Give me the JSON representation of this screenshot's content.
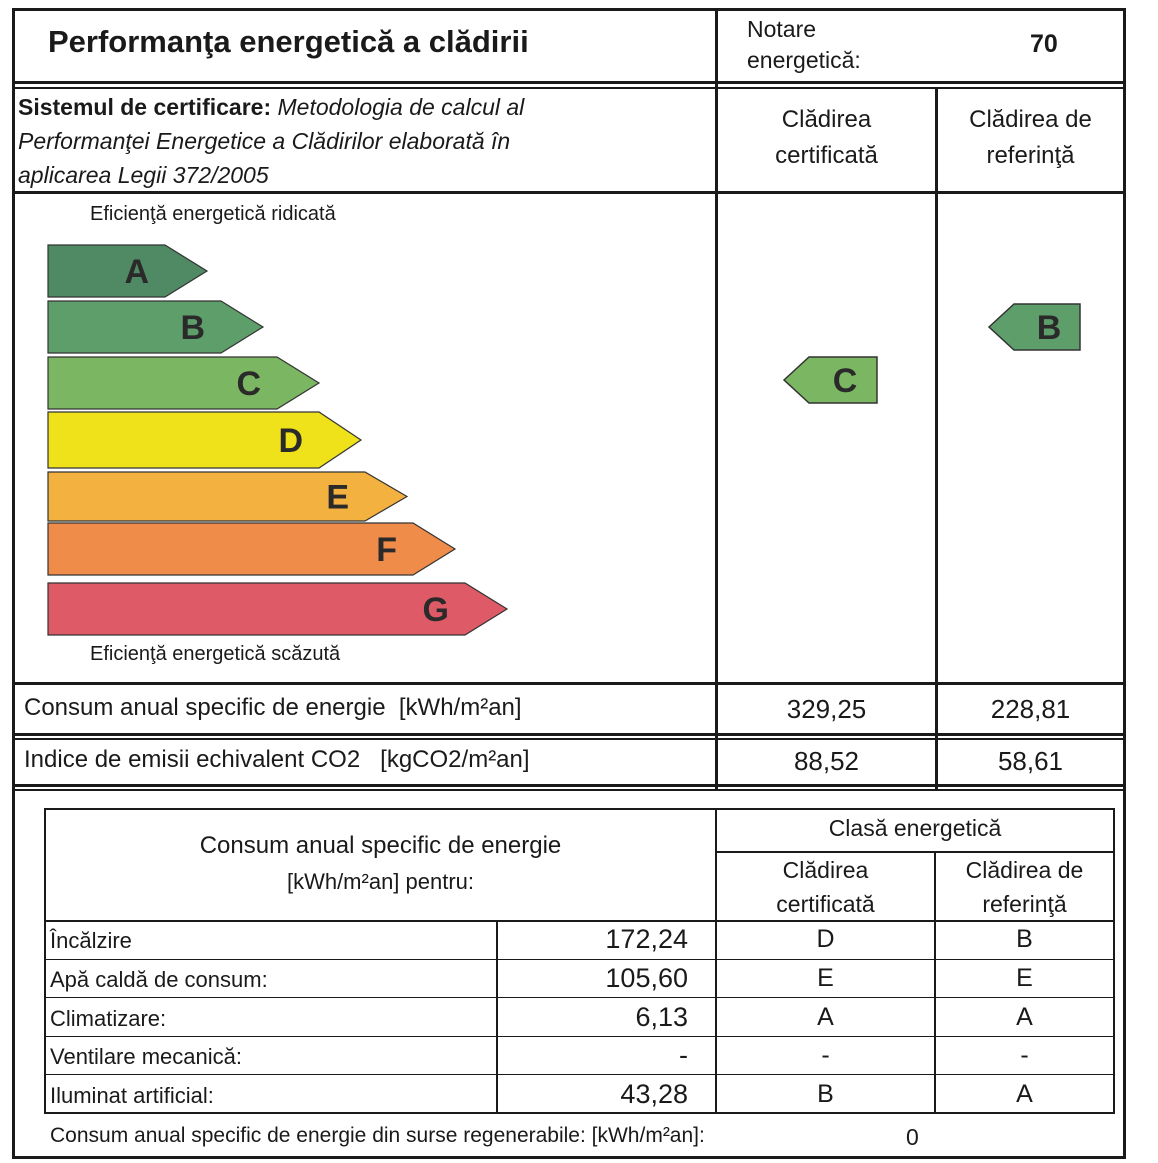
{
  "header": {
    "title": "Performanţa energetică a clădirii",
    "rating_label_line1": "Notare",
    "rating_label_line2": "energetică:",
    "rating_value": "70"
  },
  "certification": {
    "label": "Sistemul de certificare:",
    "line1": "Metodologia de calcul al",
    "line2": "Performanţei Energetice a Clădirilor elaborată în",
    "line3": "aplicarea Legii 372/2005",
    "col_certified_line1": "Clădirea",
    "col_certified_line2": "certificată",
    "col_reference_line1": "Clădirea de",
    "col_reference_line2": "referinţă"
  },
  "scale": {
    "top_label": "Eficienţă energetică ridicată",
    "bottom_label": "Eficienţă energetică scăzută",
    "classes": [
      {
        "letter": "A",
        "color": "#4f8a64"
      },
      {
        "letter": "B",
        "color": "#5e9e6a"
      },
      {
        "letter": "C",
        "color": "#7bb662"
      },
      {
        "letter": "D",
        "color": "#efe21a"
      },
      {
        "letter": "E",
        "color": "#f3b13f"
      },
      {
        "letter": "F",
        "color": "#f08c4a"
      },
      {
        "letter": "G",
        "color": "#de5a67"
      }
    ],
    "certified_class": "C",
    "certified_color": "#7bb662",
    "reference_class": "B",
    "reference_color": "#5e9e6a"
  },
  "summary": {
    "energy_label": "Consum anual specific de energie  [kWh/m²an]",
    "energy_certified": "329,25",
    "energy_reference": "228,81",
    "co2_label": "Indice de emisii echivalent CO2   [kgCO2/m²an]",
    "co2_certified": "88,52",
    "co2_reference": "58,61"
  },
  "detail": {
    "header_line1": "Consum anual specific de energie",
    "header_line2": "[kWh/m²an] pentru:",
    "class_header": "Clasă energetică",
    "col_certified_line1": "Clădirea",
    "col_certified_line2": "certificată",
    "col_reference_line1": "Clădirea de",
    "col_reference_line2": "referinţă",
    "rows": [
      {
        "label": "Încălzire",
        "value": "172,24",
        "certified": "D",
        "reference": "B"
      },
      {
        "label": "Apă caldă de consum:",
        "value": "105,60",
        "certified": "E",
        "reference": "E"
      },
      {
        "label": "Climatizare:",
        "value": "6,13",
        "certified": "A",
        "reference": "A"
      },
      {
        "label": "Ventilare mecanică:",
        "value": "-",
        "certified": "-",
        "reference": "-"
      },
      {
        "label": "Iluminat artificial:",
        "value": "43,28",
        "certified": "B",
        "reference": "A"
      }
    ],
    "renewable_label": "Consum anual specific de energie din surse regenerabile: [kWh/m²an]:",
    "renewable_value": "0"
  }
}
